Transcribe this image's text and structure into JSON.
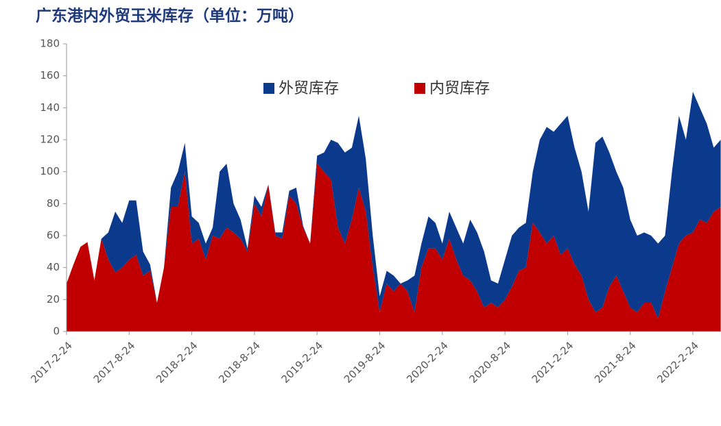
{
  "chart_data": {
    "type": "stacked_area",
    "title": "广东港内外贸玉米库存（单位：万吨）",
    "categories": [
      "2017-2-24",
      null,
      null,
      null,
      null,
      null,
      null,
      null,
      null,
      "2017-8-24",
      null,
      null,
      null,
      null,
      null,
      null,
      null,
      null,
      "2018-2-24",
      null,
      null,
      null,
      null,
      null,
      null,
      null,
      null,
      "2018-8-24",
      null,
      null,
      null,
      null,
      null,
      null,
      null,
      null,
      "2019-2-24",
      null,
      null,
      null,
      null,
      null,
      null,
      null,
      null,
      "2019-8-24",
      null,
      null,
      null,
      null,
      null,
      null,
      null,
      null,
      "2020-2-24",
      null,
      null,
      null,
      null,
      null,
      null,
      null,
      null,
      "2020-8-24",
      null,
      null,
      null,
      null,
      null,
      null,
      null,
      null,
      "2021-2-24",
      null,
      null,
      null,
      null,
      null,
      null,
      null,
      null,
      "2021-8-24",
      null,
      null,
      null,
      null,
      null,
      null,
      null,
      null,
      "2022-2-24",
      null,
      null,
      null,
      null
    ],
    "series": [
      {
        "name": "内贸库存",
        "color": "#c00000",
        "values": [
          30,
          42,
          53,
          56,
          32,
          58,
          45,
          37,
          40,
          45,
          48,
          35,
          38,
          18,
          40,
          78,
          78,
          100,
          55,
          58,
          45,
          60,
          58,
          65,
          62,
          58,
          50,
          80,
          72,
          92,
          60,
          58,
          85,
          80,
          65,
          55,
          105,
          100,
          95,
          65,
          55,
          70,
          90,
          75,
          40,
          12,
          30,
          25,
          30,
          25,
          12,
          40,
          52,
          52,
          45,
          58,
          45,
          35,
          32,
          25,
          15,
          18,
          15,
          20,
          28,
          38,
          40,
          68,
          62,
          55,
          60,
          48,
          52,
          42,
          35,
          20,
          12,
          15,
          28,
          35,
          25,
          15,
          12,
          18,
          18,
          8,
          25,
          40,
          55,
          60,
          62,
          70,
          68,
          75,
          78
        ]
      },
      {
        "name": "外贸库存",
        "color": "#0b3a8c",
        "values": [
          0,
          0,
          0,
          0,
          0,
          0,
          17,
          38,
          28,
          37,
          34,
          15,
          4,
          0,
          0,
          12,
          22,
          18,
          17,
          10,
          10,
          5,
          42,
          40,
          18,
          12,
          2,
          5,
          6,
          0,
          2,
          4,
          3,
          10,
          1,
          0,
          5,
          12,
          25,
          53,
          57,
          45,
          45,
          33,
          20,
          10,
          8,
          10,
          0,
          7,
          23,
          15,
          20,
          16,
          10,
          17,
          20,
          20,
          38,
          37,
          35,
          14,
          15,
          25,
          32,
          27,
          28,
          32,
          58,
          73,
          65,
          82,
          83,
          73,
          65,
          55,
          106,
          107,
          84,
          65,
          65,
          55,
          48,
          44,
          42,
          47,
          35,
          60,
          80,
          60,
          88,
          70,
          62,
          40,
          42
        ]
      }
    ],
    "ylim": [
      0,
      180
    ],
    "yticks": [
      0,
      20,
      40,
      60,
      80,
      100,
      120,
      140,
      160,
      180
    ]
  }
}
